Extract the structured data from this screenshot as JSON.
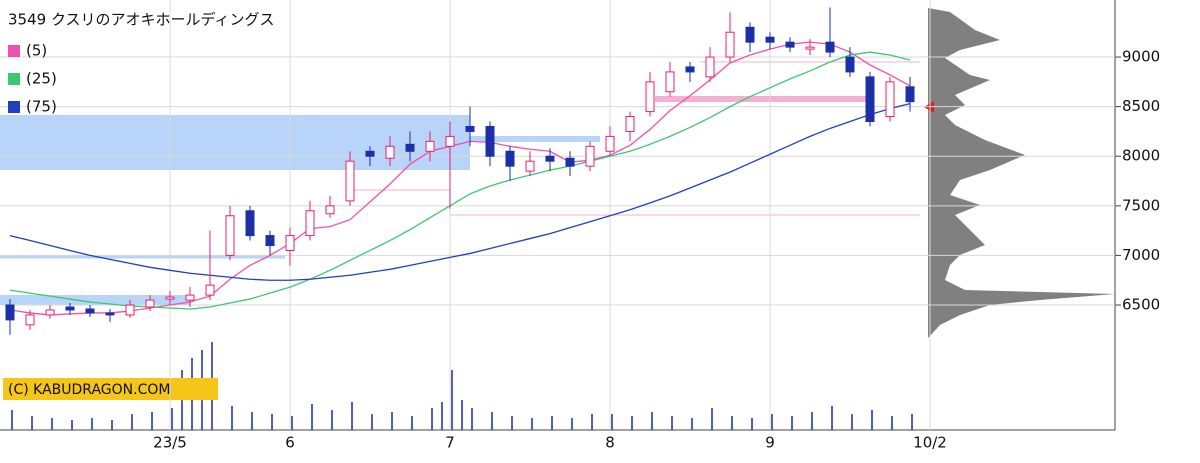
{
  "chart_data": {
    "type": "candlestick",
    "title": "3549 クスリのアオキホールディングス",
    "watermark": "(C) KABUDRAGON.COM",
    "categories": [
      null,
      null,
      null,
      null,
      null,
      null,
      null,
      null,
      "23/5",
      null,
      null,
      null,
      null,
      null,
      "6",
      null,
      null,
      null,
      null,
      null,
      null,
      null,
      "7",
      null,
      null,
      null,
      null,
      null,
      null,
      null,
      "8",
      null,
      null,
      null,
      null,
      null,
      null,
      null,
      "9",
      null,
      null,
      null,
      null,
      null,
      null,
      null,
      "10/2"
    ],
    "open": [
      6500,
      6300,
      6400,
      6480,
      6460,
      6420,
      6400,
      6480,
      6560,
      6550,
      6600,
      7000,
      7450,
      7200,
      7050,
      7200,
      7420,
      7550,
      8050,
      7980,
      8120,
      8050,
      8100,
      8300,
      8300,
      8050,
      7850,
      8000,
      7980,
      7900,
      8050,
      8250,
      8450,
      8650,
      8900,
      8800,
      9000,
      9300,
      9200,
      9150,
      9080,
      9150,
      9000,
      8800,
      8400,
      8700,
      null
    ],
    "high": [
      6560,
      6450,
      6500,
      6520,
      6500,
      6460,
      6550,
      6600,
      6640,
      6680,
      7250,
      7500,
      7500,
      7250,
      7280,
      7550,
      7600,
      8050,
      8100,
      8200,
      8250,
      8250,
      8350,
      8500,
      8350,
      8100,
      8050,
      8080,
      8050,
      8150,
      8300,
      8450,
      8850,
      8950,
      8950,
      9100,
      9450,
      9350,
      9250,
      9200,
      9180,
      9500,
      9100,
      8850,
      8800,
      8800,
      null
    ],
    "low": [
      6200,
      6250,
      6360,
      6400,
      6380,
      6330,
      6370,
      6440,
      6500,
      6480,
      6550,
      6950,
      7150,
      7000,
      6900,
      7150,
      7380,
      7500,
      7900,
      7900,
      7950,
      7950,
      7470,
      8100,
      7900,
      7750,
      7800,
      7850,
      7800,
      7850,
      8000,
      8150,
      8400,
      8600,
      8750,
      8750,
      8950,
      9050,
      9080,
      9050,
      9020,
      9000,
      8800,
      8300,
      8350,
      8450,
      null
    ],
    "close": [
      6350,
      6400,
      6450,
      6450,
      6420,
      6400,
      6500,
      6550,
      6580,
      6600,
      6700,
      7400,
      7200,
      7100,
      7200,
      7450,
      7500,
      7950,
      8000,
      8100,
      8050,
      8150,
      8200,
      8250,
      8000,
      7900,
      7950,
      7950,
      7900,
      8100,
      8200,
      8400,
      8750,
      8850,
      8850,
      9000,
      9250,
      9150,
      9150,
      9100,
      9100,
      9050,
      8850,
      8350,
      8750,
      8550,
      null
    ],
    "up_color": "#e8206e",
    "down_color": "#1b2fa8",
    "series": [
      {
        "name": "(5)",
        "color": "#f050b0",
        "values": [
          6450,
          6420,
          6400,
          6410,
          6420,
          6420,
          6440,
          6470,
          6500,
          6530,
          6590,
          6760,
          6900,
          7000,
          7120,
          7270,
          7290,
          7360,
          7540,
          7720,
          7920,
          8050,
          8100,
          8150,
          8140,
          8100,
          8070,
          8050,
          7940,
          7960,
          8010,
          8110,
          8270,
          8460,
          8610,
          8770,
          8940,
          9020,
          9080,
          9130,
          9150,
          9130,
          9050,
          8920,
          8820,
          8710,
          null
        ]
      },
      {
        "name": "(25)",
        "color": "#3cc870",
        "values": [
          6650,
          6620,
          6590,
          6560,
          6530,
          6510,
          6490,
          6480,
          6470,
          6460,
          6480,
          6520,
          6560,
          6620,
          6680,
          6760,
          6850,
          6950,
          7050,
          7150,
          7260,
          7380,
          7500,
          7620,
          7700,
          7760,
          7810,
          7860,
          7900,
          7950,
          8000,
          8050,
          8120,
          8200,
          8290,
          8390,
          8500,
          8600,
          8690,
          8780,
          8860,
          8950,
          9020,
          9050,
          9020,
          8970,
          null
        ]
      },
      {
        "name": "(75)",
        "color": "#2040c0",
        "values": [
          7200,
          7150,
          7100,
          7050,
          7000,
          6960,
          6920,
          6880,
          6850,
          6820,
          6800,
          6780,
          6760,
          6750,
          6750,
          6760,
          6780,
          6800,
          6830,
          6860,
          6900,
          6940,
          6980,
          7020,
          7070,
          7120,
          7170,
          7220,
          7280,
          7340,
          7400,
          7460,
          7530,
          7600,
          7680,
          7760,
          7840,
          7930,
          8020,
          8110,
          8200,
          8280,
          8350,
          8420,
          8480,
          8530,
          null
        ]
      }
    ],
    "ylim": [
      5240,
      9575
    ],
    "yticks": [
      6500,
      7000,
      7500,
      8000,
      8500,
      9000
    ],
    "grid": true
  }
}
